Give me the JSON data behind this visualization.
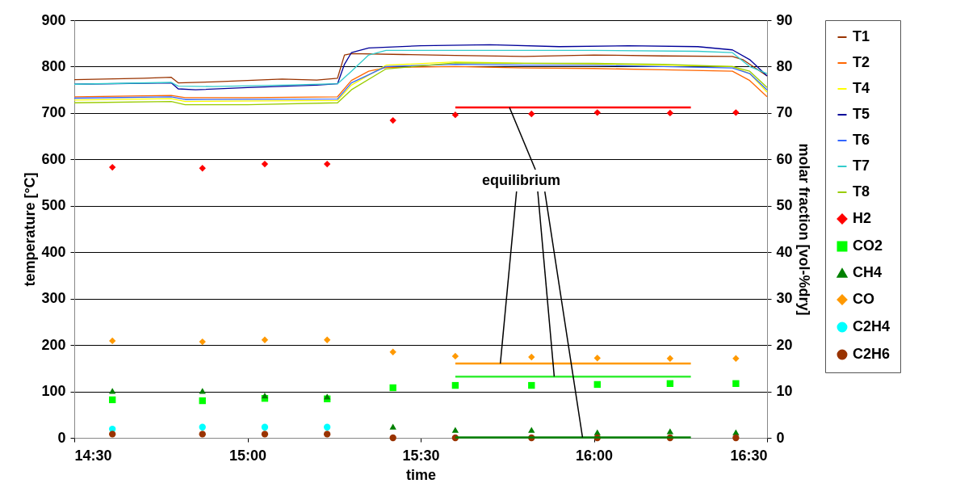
{
  "chart_data": {
    "type": "line",
    "xlabel": "time",
    "ylabel": "temperature [°C]",
    "y2label": "molar fraction [vol-%dry]",
    "xlim": [
      14.5,
      16.5
    ],
    "xticks": [
      {
        "value": 14.5,
        "label": "14:30"
      },
      {
        "value": 15,
        "label": "15:00"
      },
      {
        "value": 15.5,
        "label": "15:30"
      },
      {
        "value": 16,
        "label": "16:00"
      },
      {
        "value": 16.5,
        "label": "16:30"
      }
    ],
    "ylim": [
      0,
      900
    ],
    "yticks": [
      0,
      100,
      200,
      300,
      400,
      500,
      600,
      700,
      800,
      900
    ],
    "y2lim": [
      0,
      90
    ],
    "y2ticks": [
      0,
      10,
      20,
      30,
      40,
      50,
      60,
      70,
      80,
      90
    ],
    "grid": "y",
    "legend": "right",
    "annotations": [
      {
        "text": "equilibrium",
        "x": 15.73,
        "y": 160
      }
    ],
    "series": [
      {
        "name": "T1",
        "type": "line",
        "color": "#993300",
        "x": [
          14.5,
          14.7,
          14.78,
          14.8,
          14.9,
          15.0,
          15.1,
          15.2,
          15.26,
          15.28,
          15.3,
          15.45,
          15.6,
          15.8,
          16.0,
          16.2,
          16.4,
          16.43,
          16.5
        ],
        "values": [
          772,
          775,
          777,
          765,
          767,
          770,
          773,
          771,
          775,
          825,
          828,
          826,
          824,
          822,
          825,
          823,
          822,
          815,
          780
        ]
      },
      {
        "name": "T2",
        "type": "line",
        "color": "#ff6600",
        "x": [
          14.5,
          14.78,
          14.82,
          15.0,
          15.26,
          15.3,
          15.35,
          15.4,
          15.6,
          15.8,
          16.0,
          16.2,
          16.4,
          16.45,
          16.5
        ],
        "values": [
          735,
          738,
          733,
          733,
          735,
          770,
          790,
          798,
          800,
          797,
          796,
          793,
          790,
          770,
          735
        ]
      },
      {
        "name": "T4",
        "type": "line",
        "color": "#ffff00",
        "x": [
          14.5,
          14.78,
          14.82,
          15.26,
          15.3,
          15.4,
          15.6,
          15.8,
          16.0,
          16.2,
          16.4,
          16.45,
          16.5
        ],
        "values": [
          728,
          731,
          725,
          727,
          760,
          803,
          810,
          807,
          806,
          803,
          800,
          785,
          745
        ]
      },
      {
        "name": "T5",
        "type": "line",
        "color": "#000099",
        "x": [
          14.5,
          14.78,
          14.8,
          14.85,
          15.0,
          15.2,
          15.26,
          15.28,
          15.3,
          15.35,
          15.5,
          15.7,
          15.9,
          16.1,
          16.3,
          16.4,
          16.45,
          16.5
        ],
        "values": [
          762,
          765,
          752,
          750,
          755,
          760,
          763,
          805,
          830,
          840,
          845,
          847,
          843,
          845,
          843,
          836,
          815,
          780
        ]
      },
      {
        "name": "T6",
        "type": "line",
        "color": "#3366ff",
        "x": [
          14.5,
          14.78,
          14.82,
          15.26,
          15.3,
          15.4,
          15.6,
          15.8,
          16.0,
          16.2,
          16.4,
          16.45,
          16.5
        ],
        "values": [
          732,
          735,
          729,
          730,
          765,
          800,
          805,
          803,
          803,
          800,
          797,
          785,
          750
        ]
      },
      {
        "name": "T7",
        "type": "line",
        "color": "#33cccc",
        "x": [
          14.5,
          14.78,
          14.8,
          14.9,
          15.1,
          15.26,
          15.3,
          15.35,
          15.4,
          15.6,
          15.8,
          16.0,
          16.3,
          16.4,
          16.45,
          16.5
        ],
        "values": [
          762,
          766,
          758,
          757,
          760,
          763,
          790,
          825,
          835,
          835,
          835,
          835,
          833,
          830,
          800,
          785
        ]
      },
      {
        "name": "T8",
        "type": "line",
        "color": "#99cc00",
        "x": [
          14.5,
          14.78,
          14.82,
          15.0,
          15.26,
          15.3,
          15.4,
          15.6,
          15.8,
          16.0,
          16.2,
          16.4,
          16.45,
          16.5
        ],
        "values": [
          722,
          725,
          718,
          718,
          722,
          750,
          795,
          808,
          807,
          807,
          805,
          800,
          790,
          755
        ]
      },
      {
        "name": "H2",
        "type": "scatter",
        "axis": "y2",
        "marker": "diamond",
        "color": "#ff0000",
        "x": [
          14.61,
          14.87,
          15.05,
          15.23,
          15.42,
          15.6,
          15.82,
          16.01,
          16.22,
          16.41
        ],
        "values": [
          58.3,
          58.1,
          59.0,
          59.0,
          68.4,
          69.6,
          69.8,
          70.1,
          70.0,
          70.1
        ]
      },
      {
        "name": "CO2",
        "type": "scatter",
        "axis": "y2",
        "marker": "square",
        "color": "#00ff00",
        "x": [
          14.61,
          14.87,
          15.05,
          15.23,
          15.42,
          15.6,
          15.82,
          16.01,
          16.22,
          16.41
        ],
        "values": [
          8.2,
          8.0,
          8.5,
          8.4,
          10.8,
          11.3,
          11.3,
          11.5,
          11.7,
          11.7
        ]
      },
      {
        "name": "CH4",
        "type": "scatter",
        "axis": "y2",
        "marker": "triangle",
        "color": "#008000",
        "x": [
          14.61,
          14.87,
          15.05,
          15.23,
          15.42,
          15.6,
          15.82,
          16.01,
          16.22,
          16.41
        ],
        "values": [
          10.1,
          10.1,
          9.1,
          8.9,
          2.4,
          1.7,
          1.7,
          1.2,
          1.4,
          1.2
        ]
      },
      {
        "name": "CO",
        "type": "scatter",
        "axis": "y2",
        "marker": "diamond",
        "color": "#ff9900",
        "x": [
          14.61,
          14.87,
          15.05,
          15.23,
          15.42,
          15.6,
          15.82,
          16.01,
          16.22,
          16.41
        ],
        "values": [
          20.9,
          20.7,
          21.1,
          21.1,
          18.5,
          17.6,
          17.4,
          17.2,
          17.1,
          17.1
        ]
      },
      {
        "name": "C2H4",
        "type": "scatter",
        "axis": "y2",
        "marker": "circle",
        "color": "#00ffff",
        "x": [
          14.61,
          14.87,
          15.05,
          15.23
        ],
        "values": [
          1.9,
          2.3,
          2.3,
          2.3
        ]
      },
      {
        "name": "C2H6",
        "type": "scatter",
        "axis": "y2",
        "marker": "circle",
        "color": "#993300",
        "x": [
          14.61,
          14.87,
          15.05,
          15.23,
          15.42,
          15.6,
          15.82,
          16.01,
          16.22,
          16.41
        ],
        "values": [
          0.8,
          0.8,
          0.8,
          0.8,
          0,
          0,
          0,
          0,
          0,
          0
        ]
      },
      {
        "type": "line",
        "axis": "y2",
        "color": "#ff0000",
        "x": [
          15.6,
          16.28
        ],
        "values": [
          71.2,
          71.2
        ]
      },
      {
        "type": "line",
        "axis": "y2",
        "color": "#ff9900",
        "x": [
          15.6,
          16.28
        ],
        "values": [
          16.0,
          16.0
        ]
      },
      {
        "type": "line",
        "axis": "y2",
        "color": "#33ee33",
        "x": [
          15.6,
          16.28
        ],
        "values": [
          13.2,
          13.2
        ]
      },
      {
        "type": "line",
        "axis": "y2",
        "color": "#008000",
        "x": [
          15.6,
          16.28
        ],
        "values": [
          0.1,
          0.1
        ]
      }
    ]
  }
}
